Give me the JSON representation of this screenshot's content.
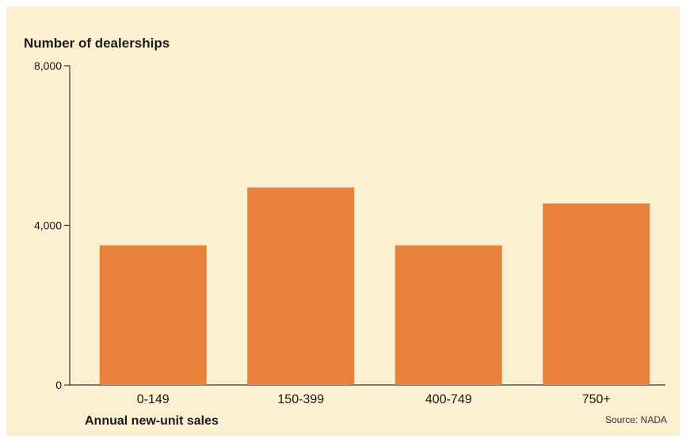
{
  "chart_data": {
    "type": "bar",
    "title": "Number of dealerships",
    "xlabel": "Annual new-unit sales",
    "ylabel": "",
    "categories": [
      "0-149",
      "150-399",
      "400-749",
      "750+"
    ],
    "values": [
      3500,
      4950,
      3500,
      4550
    ],
    "ylim": [
      0,
      8000
    ],
    "yticks": [
      0,
      4000,
      8000
    ],
    "ytick_labels": [
      "0",
      "4,000",
      "8,000"
    ],
    "grid": false,
    "source": "Source: NADA",
    "colors": {
      "bar": "#e8823a",
      "background": "#fdf0d0",
      "axis": "#333333"
    }
  }
}
